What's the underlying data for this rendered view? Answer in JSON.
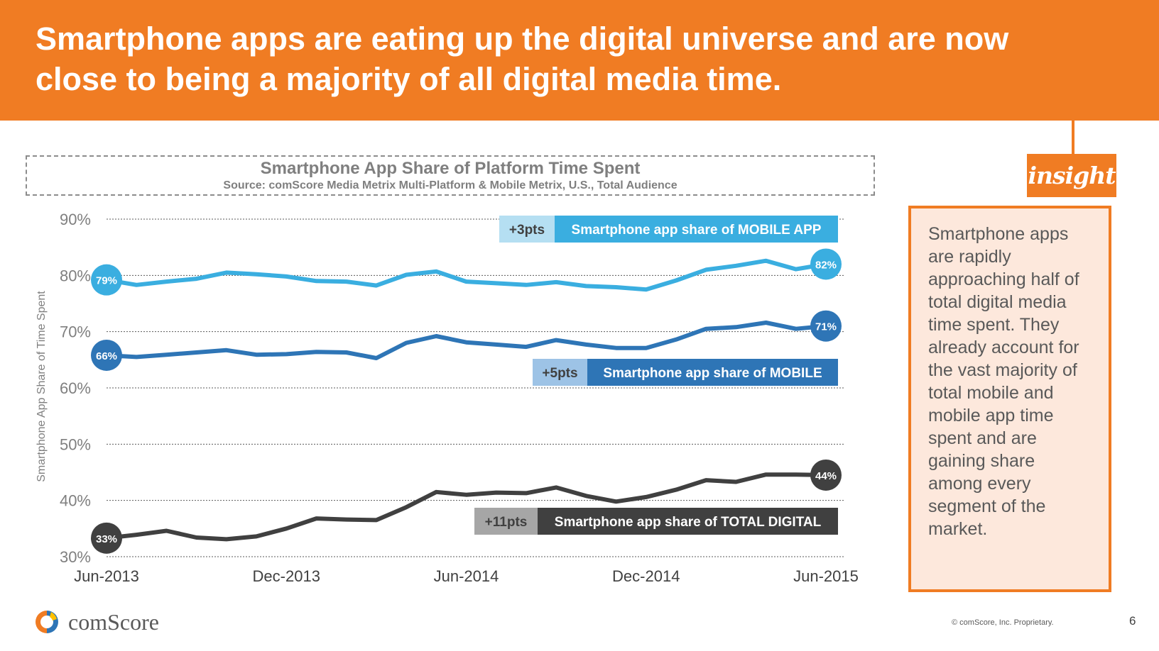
{
  "header": {
    "title": "Smartphone apps are eating up the digital universe and are now close to being a majority of all digital media time."
  },
  "insight": {
    "tag": "insight",
    "text": "Smartphone apps are rapidly approaching half of total digital media time spent. They already account for the vast majority of total mobile and mobile app time spent and are gaining share among every segment of the market."
  },
  "chart_data": {
    "type": "line",
    "title": "Smartphone App Share of Platform Time Spent",
    "subtitle": "Source: comScore Media Metrix Multi-Platform & Mobile Metrix, U.S., Total Audience",
    "ylabel": "Smartphone App Share of Time Spent",
    "xlabel": "",
    "ylim": [
      30,
      90
    ],
    "yticks": [
      90,
      80,
      70,
      60,
      50,
      40,
      30
    ],
    "ytick_labels": [
      "90%",
      "80%",
      "70%",
      "60%",
      "50%",
      "40%",
      "30%"
    ],
    "x": [
      "Jun-2013",
      "Jul-2013",
      "Aug-2013",
      "Sep-2013",
      "Oct-2013",
      "Nov-2013",
      "Dec-2013",
      "Jan-2014",
      "Feb-2014",
      "Mar-2014",
      "Apr-2014",
      "May-2014",
      "Jun-2014",
      "Jul-2014",
      "Aug-2014",
      "Sep-2014",
      "Oct-2014",
      "Nov-2014",
      "Dec-2014",
      "Jan-2015",
      "Feb-2015",
      "Mar-2015",
      "Apr-2015",
      "May-2015",
      "Jun-2015"
    ],
    "xtick_labels": [
      "Jun-2013",
      "Dec-2013",
      "Jun-2014",
      "Dec-2014",
      "Jun-2015"
    ],
    "grid": true,
    "series": [
      {
        "name": "Smartphone app share of MOBILE APP",
        "color": "#3aaee0",
        "change": "+3pts",
        "change_bg": "#b5dff2",
        "start_label": "79%",
        "end_label": "82%",
        "values": [
          79.2,
          78.3,
          78.9,
          79.4,
          80.5,
          80.2,
          79.8,
          79.0,
          78.9,
          78.2,
          80.1,
          80.7,
          78.9,
          78.6,
          78.3,
          78.8,
          78.1,
          77.9,
          77.5,
          79.1,
          81.0,
          81.7,
          82.6,
          81.1,
          82.0
        ]
      },
      {
        "name": "Smartphone app share of MOBILE",
        "color": "#2e75b6",
        "change": "+5pts",
        "change_bg": "#9dc3e6",
        "start_label": "66%",
        "end_label": "71%",
        "values": [
          65.8,
          65.5,
          65.9,
          66.3,
          66.7,
          65.9,
          66.0,
          66.4,
          66.3,
          65.3,
          68.0,
          69.2,
          68.1,
          67.7,
          67.3,
          68.5,
          67.7,
          67.1,
          67.1,
          68.6,
          70.5,
          70.8,
          71.6,
          70.5,
          71.0
        ]
      },
      {
        "name": "Smartphone app share of TOTAL DIGITAL",
        "color": "#404040",
        "change": "+11pts",
        "change_bg": "#a6a6a6",
        "start_label": "33%",
        "end_label": "44%",
        "values": [
          33.3,
          33.9,
          34.6,
          33.4,
          33.1,
          33.6,
          35.0,
          36.8,
          36.6,
          36.5,
          38.8,
          41.5,
          41.0,
          41.4,
          41.3,
          42.3,
          40.8,
          39.8,
          40.6,
          41.9,
          43.6,
          43.3,
          44.6,
          44.6,
          44.5
        ]
      }
    ]
  },
  "logo": {
    "text": "comScore"
  },
  "footer": {
    "copyright": "© comScore, Inc. Proprietary.",
    "page_number": "6"
  }
}
